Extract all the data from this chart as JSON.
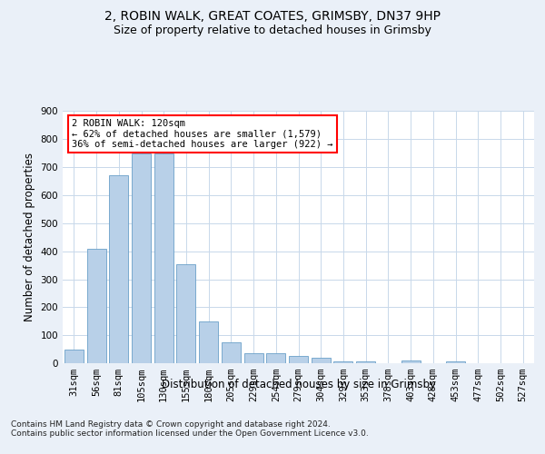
{
  "title_line1": "2, ROBIN WALK, GREAT COATES, GRIMSBY, DN37 9HP",
  "title_line2": "Size of property relative to detached houses in Grimsby",
  "xlabel": "Distribution of detached houses by size in Grimsby",
  "ylabel": "Number of detached properties",
  "footnote": "Contains HM Land Registry data © Crown copyright and database right 2024.\nContains public sector information licensed under the Open Government Licence v3.0.",
  "categories": [
    "31sqm",
    "56sqm",
    "81sqm",
    "105sqm",
    "130sqm",
    "155sqm",
    "180sqm",
    "205sqm",
    "229sqm",
    "254sqm",
    "279sqm",
    "304sqm",
    "329sqm",
    "353sqm",
    "378sqm",
    "403sqm",
    "428sqm",
    "453sqm",
    "477sqm",
    "502sqm",
    "527sqm"
  ],
  "values": [
    50,
    410,
    670,
    750,
    750,
    355,
    150,
    75,
    35,
    35,
    25,
    18,
    8,
    5,
    0,
    10,
    0,
    8,
    0,
    0,
    0
  ],
  "bar_color": "#b8d0e8",
  "bar_edge_color": "#6aa0c8",
  "annotation_text": "2 ROBIN WALK: 120sqm\n← 62% of detached houses are smaller (1,579)\n36% of semi-detached houses are larger (922) →",
  "ylim": [
    0,
    900
  ],
  "yticks": [
    0,
    100,
    200,
    300,
    400,
    500,
    600,
    700,
    800,
    900
  ],
  "bg_color": "#eaf0f8",
  "plot_bg_color": "#ffffff",
  "grid_color": "#c8d8ea",
  "title_fontsize": 10,
  "subtitle_fontsize": 9,
  "axis_label_fontsize": 8.5,
  "tick_fontsize": 7.5,
  "footnote_fontsize": 6.5
}
